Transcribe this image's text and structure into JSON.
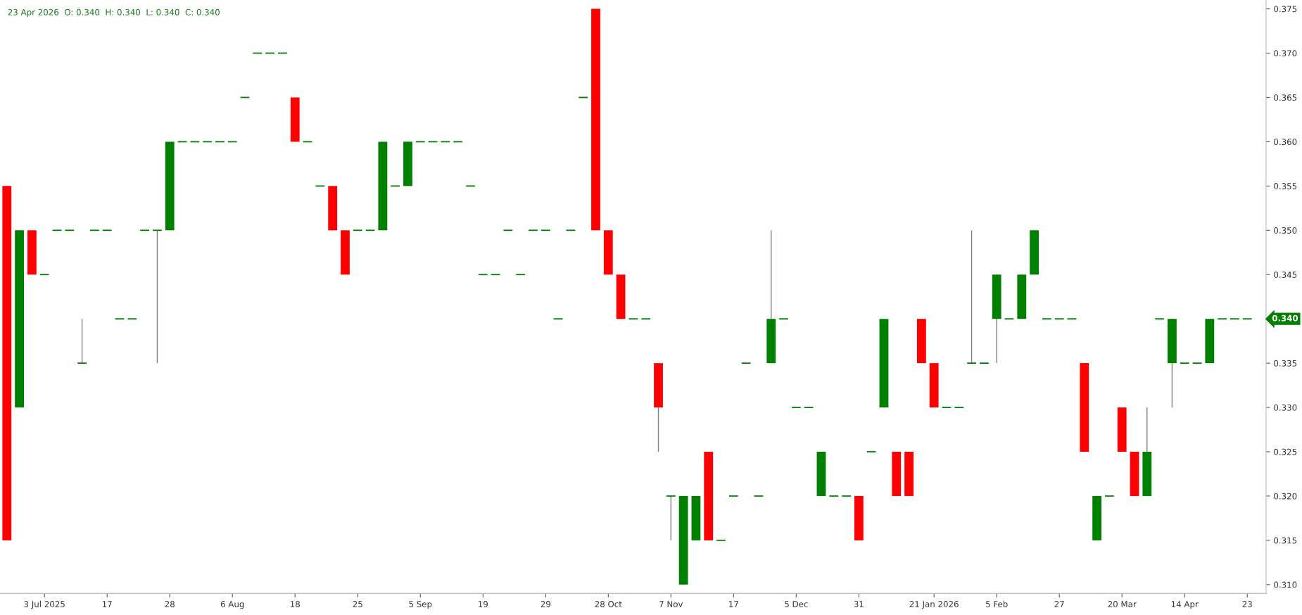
{
  "chart_data": {
    "type": "candlestick",
    "annotations": [
      "23 Apr 2026  O: 0.340  H: 0.340  L: 0.340  C: 0.340",
      "0.340"
    ],
    "categories": [
      null,
      null,
      null,
      "3 Jul 2025",
      null,
      null,
      null,
      null,
      "17",
      null,
      null,
      null,
      null,
      "28",
      null,
      null,
      null,
      null,
      "6 Aug",
      null,
      null,
      null,
      null,
      "18",
      null,
      null,
      null,
      null,
      "25",
      null,
      null,
      null,
      null,
      "5 Sep",
      null,
      null,
      null,
      null,
      "19",
      null,
      null,
      null,
      null,
      "29",
      null,
      null,
      null,
      null,
      "28 Oct",
      null,
      null,
      null,
      null,
      "7 Nov",
      null,
      null,
      null,
      null,
      "17",
      null,
      null,
      null,
      null,
      "5 Dec",
      null,
      null,
      null,
      null,
      "31",
      null,
      null,
      null,
      null,
      null,
      "21 Jan 2026",
      null,
      null,
      null,
      null,
      "5 Feb",
      null,
      null,
      null,
      null,
      "27",
      null,
      null,
      null,
      null,
      "20 Mar",
      null,
      null,
      null,
      null,
      "14 Apr",
      null,
      null,
      null,
      null,
      "23"
    ],
    "ohlc": [
      [
        0.355,
        0.355,
        0.315,
        0.315
      ],
      [
        0.33,
        0.35,
        0.33,
        0.35
      ],
      [
        0.35,
        0.35,
        0.345,
        0.345
      ],
      [
        0.345,
        0.345,
        0.345,
        0.345
      ],
      [
        0.35,
        0.35,
        0.35,
        0.35
      ],
      [
        0.35,
        0.35,
        0.35,
        0.35
      ],
      [
        0.335,
        0.34,
        0.335,
        0.335
      ],
      [
        0.35,
        0.35,
        0.35,
        0.35
      ],
      [
        0.35,
        0.35,
        0.35,
        0.35
      ],
      [
        0.34,
        0.34,
        0.34,
        0.34
      ],
      [
        0.34,
        0.34,
        0.34,
        0.34
      ],
      [
        0.35,
        0.35,
        0.35,
        0.35
      ],
      [
        0.35,
        0.35,
        0.335,
        0.35
      ],
      [
        0.35,
        0.36,
        0.35,
        0.36
      ],
      [
        0.36,
        0.36,
        0.36,
        0.36
      ],
      [
        0.36,
        0.36,
        0.36,
        0.36
      ],
      [
        0.36,
        0.36,
        0.36,
        0.36
      ],
      [
        0.36,
        0.36,
        0.36,
        0.36
      ],
      [
        0.36,
        0.36,
        0.36,
        0.36
      ],
      [
        0.365,
        0.365,
        0.365,
        0.365
      ],
      [
        0.37,
        0.37,
        0.37,
        0.37
      ],
      [
        0.37,
        0.37,
        0.37,
        0.37
      ],
      [
        0.37,
        0.37,
        0.37,
        0.37
      ],
      [
        0.365,
        0.365,
        0.36,
        0.36
      ],
      [
        0.36,
        0.36,
        0.36,
        0.36
      ],
      [
        0.355,
        0.355,
        0.355,
        0.355
      ],
      [
        0.355,
        0.355,
        0.35,
        0.35
      ],
      [
        0.35,
        0.35,
        0.345,
        0.345
      ],
      [
        0.35,
        0.35,
        0.35,
        0.35
      ],
      [
        0.35,
        0.35,
        0.35,
        0.35
      ],
      [
        0.35,
        0.36,
        0.35,
        0.36
      ],
      [
        0.355,
        0.355,
        0.355,
        0.355
      ],
      [
        0.355,
        0.36,
        0.355,
        0.36
      ],
      [
        0.36,
        0.36,
        0.36,
        0.36
      ],
      [
        0.36,
        0.36,
        0.36,
        0.36
      ],
      [
        0.36,
        0.36,
        0.36,
        0.36
      ],
      [
        0.36,
        0.36,
        0.36,
        0.36
      ],
      [
        0.355,
        0.355,
        0.355,
        0.355
      ],
      [
        0.345,
        0.345,
        0.345,
        0.345
      ],
      [
        0.345,
        0.345,
        0.345,
        0.345
      ],
      [
        0.35,
        0.35,
        0.35,
        0.35
      ],
      [
        0.345,
        0.345,
        0.345,
        0.345
      ],
      [
        0.35,
        0.35,
        0.35,
        0.35
      ],
      [
        0.35,
        0.35,
        0.35,
        0.35
      ],
      [
        0.34,
        0.34,
        0.34,
        0.34
      ],
      [
        0.35,
        0.35,
        0.35,
        0.35
      ],
      [
        0.365,
        0.365,
        0.365,
        0.365
      ],
      [
        0.375,
        0.375,
        0.35,
        0.35
      ],
      [
        0.35,
        0.35,
        0.345,
        0.345
      ],
      [
        0.345,
        0.345,
        0.34,
        0.34
      ],
      [
        0.34,
        0.34,
        0.34,
        0.34
      ],
      [
        0.34,
        0.34,
        0.34,
        0.34
      ],
      [
        0.335,
        0.335,
        0.325,
        0.33
      ],
      [
        0.32,
        0.32,
        0.315,
        0.32
      ],
      [
        0.31,
        0.32,
        0.31,
        0.32
      ],
      [
        0.315,
        0.32,
        0.315,
        0.32
      ],
      [
        0.325,
        0.325,
        0.315,
        0.315
      ],
      [
        0.315,
        0.315,
        0.315,
        0.315
      ],
      [
        0.32,
        0.32,
        0.32,
        0.32
      ],
      [
        0.335,
        0.335,
        0.335,
        0.335
      ],
      [
        0.32,
        0.32,
        0.32,
        0.32
      ],
      [
        0.335,
        0.35,
        0.335,
        0.34
      ],
      [
        0.34,
        0.34,
        0.34,
        0.34
      ],
      [
        0.33,
        0.33,
        0.33,
        0.33
      ],
      [
        0.33,
        0.33,
        0.33,
        0.33
      ],
      [
        0.32,
        0.325,
        0.32,
        0.325
      ],
      [
        0.32,
        0.32,
        0.32,
        0.32
      ],
      [
        0.32,
        0.32,
        0.32,
        0.32
      ],
      [
        0.32,
        0.32,
        0.315,
        0.315
      ],
      [
        0.325,
        0.325,
        0.325,
        0.325
      ],
      [
        0.33,
        0.34,
        0.33,
        0.34
      ],
      [
        0.325,
        0.325,
        0.32,
        0.32
      ],
      [
        0.325,
        0.325,
        0.32,
        0.32
      ],
      [
        0.34,
        0.34,
        0.335,
        0.335
      ],
      [
        0.335,
        0.335,
        0.33,
        0.33
      ],
      [
        0.33,
        0.33,
        0.33,
        0.33
      ],
      [
        0.33,
        0.33,
        0.33,
        0.33
      ],
      [
        0.335,
        0.35,
        0.335,
        0.335
      ],
      [
        0.335,
        0.335,
        0.335,
        0.335
      ],
      [
        0.34,
        0.345,
        0.335,
        0.345
      ],
      [
        0.34,
        0.34,
        0.34,
        0.34
      ],
      [
        0.34,
        0.345,
        0.34,
        0.345
      ],
      [
        0.345,
        0.35,
        0.345,
        0.35
      ],
      [
        0.34,
        0.34,
        0.34,
        0.34
      ],
      [
        0.34,
        0.34,
        0.34,
        0.34
      ],
      [
        0.34,
        0.34,
        0.34,
        0.34
      ],
      [
        0.335,
        0.335,
        0.325,
        0.325
      ],
      [
        0.315,
        0.32,
        0.315,
        0.32
      ],
      [
        0.32,
        0.32,
        0.32,
        0.32
      ],
      [
        0.33,
        0.33,
        0.325,
        0.325
      ],
      [
        0.325,
        0.325,
        0.32,
        0.32
      ],
      [
        0.32,
        0.33,
        0.32,
        0.325
      ],
      [
        0.34,
        0.34,
        0.34,
        0.34
      ],
      [
        0.335,
        0.34,
        0.33,
        0.34
      ],
      [
        0.335,
        0.335,
        0.335,
        0.335
      ],
      [
        0.335,
        0.335,
        0.335,
        0.335
      ],
      [
        0.335,
        0.34,
        0.335,
        0.34
      ],
      [
        0.34,
        0.34,
        0.34,
        0.34
      ],
      [
        0.34,
        0.34,
        0.34,
        0.34
      ],
      [
        0.34,
        0.34,
        0.34,
        0.34
      ]
    ],
    "colors": [
      "#ff0000",
      "#008000",
      "#ff0000",
      "#008000",
      "#008000",
      "#008000",
      "#008000",
      "#008000",
      "#008000",
      "#008000",
      "#008000",
      "#008000",
      "#008000",
      "#008000",
      "#008000",
      "#008000",
      "#008000",
      "#008000",
      "#008000",
      "#008000",
      "#008000",
      "#008000",
      "#008000",
      "#ff0000",
      "#008000",
      "#008000",
      "#ff0000",
      "#ff0000",
      "#008000",
      "#008000",
      "#008000",
      "#008000",
      "#008000",
      "#008000",
      "#008000",
      "#008000",
      "#008000",
      "#008000",
      "#008000",
      "#008000",
      "#008000",
      "#008000",
      "#008000",
      "#008000",
      "#008000",
      "#008000",
      "#008000",
      "#ff0000",
      "#ff0000",
      "#ff0000",
      "#008000",
      "#008000",
      "#ff0000",
      "#008000",
      "#008000",
      "#008000",
      "#ff0000",
      "#008000",
      "#008000",
      "#008000",
      "#008000",
      "#008000",
      "#008000",
      "#008000",
      "#008000",
      "#008000",
      "#008000",
      "#008000",
      "#ff0000",
      "#008000",
      "#008000",
      "#ff0000",
      "#ff0000",
      "#ff0000",
      "#ff0000",
      "#008000",
      "#008000",
      "#008000",
      "#008000",
      "#008000",
      "#008000",
      "#008000",
      "#008000",
      "#008000",
      "#008000",
      "#008000",
      "#ff0000",
      "#008000",
      "#008000",
      "#ff0000",
      "#ff0000",
      "#008000",
      "#008000",
      "#008000",
      "#008000",
      "#008000",
      "#008000",
      "#008000",
      "#008000",
      "#008000"
    ],
    "ylim": [
      0.309,
      0.376
    ],
    "yticks": [
      {
        "value": 0.31,
        "label": "0.310"
      },
      {
        "value": 0.315,
        "label": "0.315"
      },
      {
        "value": 0.32,
        "label": "0.320"
      },
      {
        "value": 0.325,
        "label": "0.325"
      },
      {
        "value": 0.33,
        "label": "0.330"
      },
      {
        "value": 0.335,
        "label": "0.335"
      },
      {
        "value": 0.34,
        "label": null
      },
      {
        "value": 0.345,
        "label": "0.345"
      },
      {
        "value": 0.35,
        "label": "0.350"
      },
      {
        "value": 0.355,
        "label": "0.355"
      },
      {
        "value": 0.36,
        "label": "0.360"
      },
      {
        "value": 0.365,
        "label": "0.365"
      },
      {
        "value": 0.37,
        "label": "0.370"
      },
      {
        "value": 0.375,
        "label": "0.375"
      }
    ],
    "grid": false,
    "legend": false
  }
}
